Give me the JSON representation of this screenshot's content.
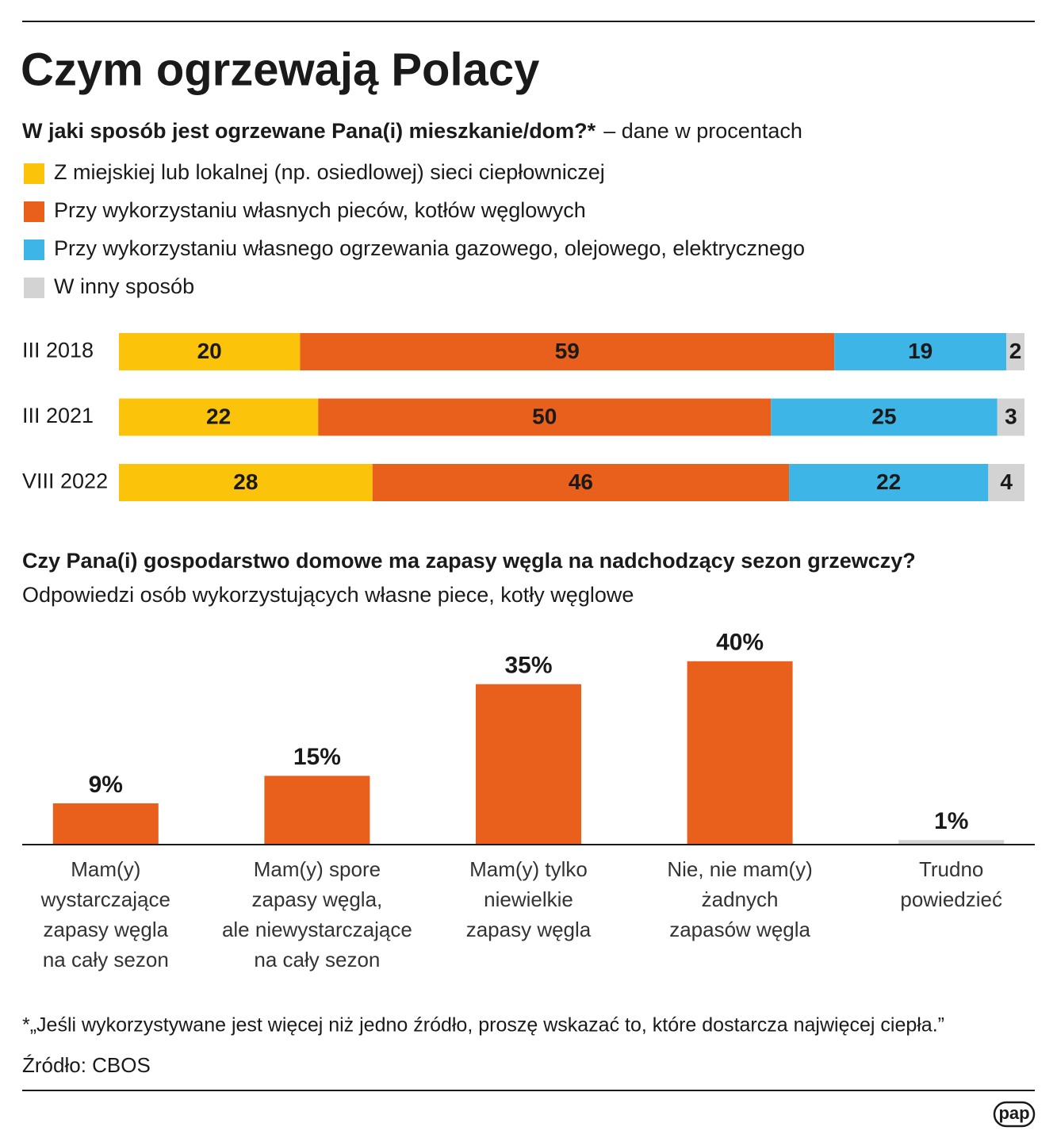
{
  "title": "Czym ogrzewają Polacy",
  "footnote": "*„Jeśli wykorzystywane jest więcej niż jedno źródło, proszę wskazać to, które dostarcza najwięcej ciepła.”",
  "source": "Źródło: CBOS",
  "logo": "pap",
  "chart_data": [
    {
      "type": "stackedbar",
      "title": "W jaki sposób jest ogrzewane Pana(i) mieszkanie/dom?*",
      "subtitle": "– dane w procentach",
      "categories": [
        "III 2018",
        "III 2021",
        "VIII 2022"
      ],
      "series": [
        {
          "name": "Z miejskiej lub lokalnej (np. osiedlowej) sieci ciepłowniczej",
          "color": "#fbc30a",
          "values": [
            20,
            22,
            28
          ]
        },
        {
          "name": "Przy wykorzystaniu własnych pieców, kotłów węglowych",
          "color": "#e8601c",
          "values": [
            59,
            50,
            46
          ]
        },
        {
          "name": "Przy wykorzystaniu własnego ogrzewania gazowego, olejowego, elektrycznego",
          "color": "#3db5e6",
          "values": [
            19,
            25,
            22
          ]
        },
        {
          "name": "W inny sposób",
          "color": "#d3d3d3",
          "values": [
            2,
            3,
            4
          ]
        }
      ]
    },
    {
      "type": "bar",
      "title": "Czy Pana(i) gospodarstwo domowe ma zapasy węgla na nadchodzący sezon grzewczy?",
      "subtitle": "Odpowiedzi osób wykorzystujących własne piece, kotły węglowe",
      "categories": [
        "Mam(y)\nwystarczające\nzapasy węgla\nna cały sezon",
        "Mam(y) spore\nzapasy węgla,\nale niewystarczające\nna cały sezon",
        "Mam(y) tylko\nniewielkie\nzapasy węgla",
        "Nie, nie mam(y)\nżadnych\nzapasów węgla",
        "Trudno\npowiedzieć"
      ],
      "values": [
        9,
        15,
        35,
        40,
        1
      ],
      "value_labels": [
        "9%",
        "15%",
        "35%",
        "40%",
        "1%"
      ],
      "colors": [
        "#e8601c",
        "#e8601c",
        "#e8601c",
        "#e8601c",
        "#d3d3d3"
      ]
    }
  ]
}
